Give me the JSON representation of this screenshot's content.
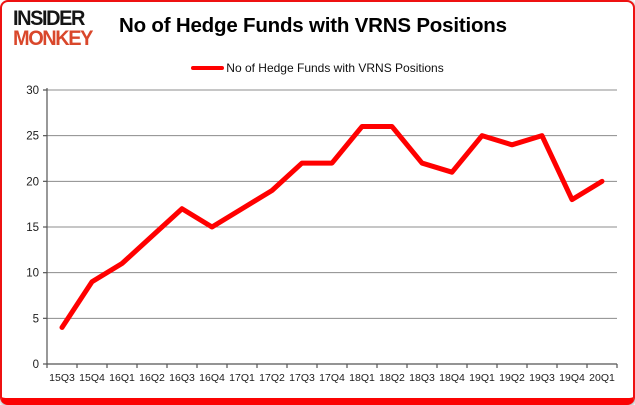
{
  "brand": {
    "name": "Insider Monkey",
    "line1": "INSIDER",
    "line2": "MONKEY",
    "line1_color": "#151515",
    "line2_color": "#d9472b"
  },
  "title": "No of Hedge Funds with VRNS Positions",
  "legend": {
    "label": "No of Hedge Funds with VRNS Positions",
    "swatch_color": "#ff0000"
  },
  "chart_data": {
    "type": "line",
    "title": "No of Hedge Funds with VRNS Positions",
    "categories": [
      "15Q3",
      "15Q4",
      "16Q1",
      "16Q2",
      "16Q3",
      "16Q4",
      "17Q1",
      "17Q2",
      "17Q3",
      "17Q4",
      "18Q1",
      "18Q2",
      "18Q3",
      "18Q4",
      "19Q1",
      "19Q2",
      "19Q3",
      "19Q4",
      "20Q1"
    ],
    "series": [
      {
        "name": "No of Hedge Funds with VRNS Positions",
        "color": "#ff0000",
        "values": [
          4,
          9,
          11,
          14,
          17,
          15,
          17,
          19,
          22,
          22,
          26,
          26,
          22,
          21,
          25,
          24,
          25,
          18,
          20
        ]
      }
    ],
    "xlabel": "",
    "ylabel": "",
    "ylim": [
      0,
      30
    ],
    "yticks": [
      0,
      5,
      10,
      15,
      20,
      25,
      30
    ],
    "grid": "horizontal-only",
    "legend_position": "top-center",
    "grid_color": "#8c8c8c",
    "axis_color": "#555555",
    "tick_label_color": "#1c1c1c",
    "line_width": 5
  }
}
